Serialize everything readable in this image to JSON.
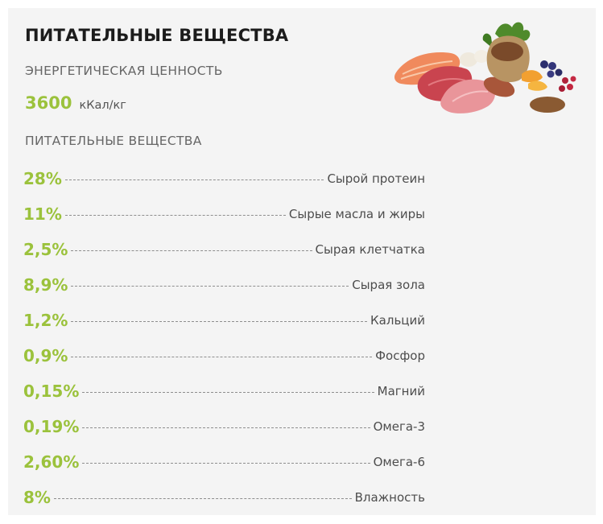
{
  "title": "ПИТАТЕЛЬНЫЕ ВЕЩЕСТВА",
  "energy": {
    "label": "ЭНЕРГЕТИЧЕСКАЯ ЦЕННОСТЬ",
    "value": "3600",
    "unit": "кКал/кг"
  },
  "nutrients_label": "ПИТАТЕЛЬНЫЕ ВЕЩЕСТВА",
  "nutrients": [
    {
      "value": "28%",
      "name": "Сырой протеин"
    },
    {
      "value": "11%",
      "name": "Сырые масла и жиры"
    },
    {
      "value": "2,5%",
      "name": "Сырая клетчатка"
    },
    {
      "value": "8,9%",
      "name": "Сырая зола"
    },
    {
      "value": "1,2%",
      "name": "Кальций"
    },
    {
      "value": "0,9%",
      "name": "Фосфор"
    },
    {
      "value": "0,15%",
      "name": "Магний"
    },
    {
      "value": "0,19%",
      "name": "Омега-3"
    },
    {
      "value": "2,60%",
      "name": "Омега-6"
    },
    {
      "value": "8%",
      "name": "Влажность"
    }
  ],
  "colors": {
    "accent": "#9bc23c",
    "background": "#f4f4f4",
    "title": "#1c1c1c"
  },
  "image": {
    "name": "food-ingredients-image"
  }
}
